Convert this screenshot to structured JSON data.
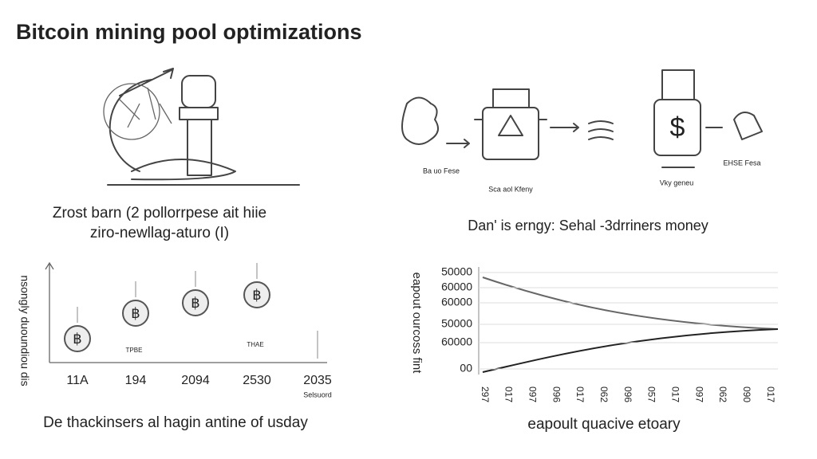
{
  "header": {
    "title": "Bitcoin mining pool optimizations"
  },
  "top_left": {
    "caption": [
      "Zrost barn (2 pollorrpese ait hiie",
      "ziro-newllag-aturo (I)"
    ]
  },
  "top_right": {
    "labels": [
      "Sca aol Kfeny",
      "Vky geneu",
      "EHSE Fesa",
      "Ba uo Fese"
    ],
    "caption": "Dan' is erngy: Sehal -3drriners money"
  },
  "bottom_left": {
    "y_label": "nsongly duoundiou dis",
    "x_labels": [
      "11A",
      "194",
      "2094",
      "2530",
      "2035"
    ],
    "sub_label": "Selsuord",
    "tags": [
      "TPBE",
      "THAE"
    ],
    "caption": "De thackinsers al hagin antine of usday"
  },
  "bottom_right": {
    "y_label": "eapout ourcoss fint",
    "y_labels": [
      "50000",
      "60000",
      "60000",
      "50000",
      "60000",
      "00"
    ],
    "x_labels": [
      "297",
      "017",
      "097",
      "096",
      "017",
      "062",
      "096",
      "057",
      "017",
      "097",
      "062",
      "090",
      "017"
    ],
    "caption": "eapoult quacive etoary"
  }
}
